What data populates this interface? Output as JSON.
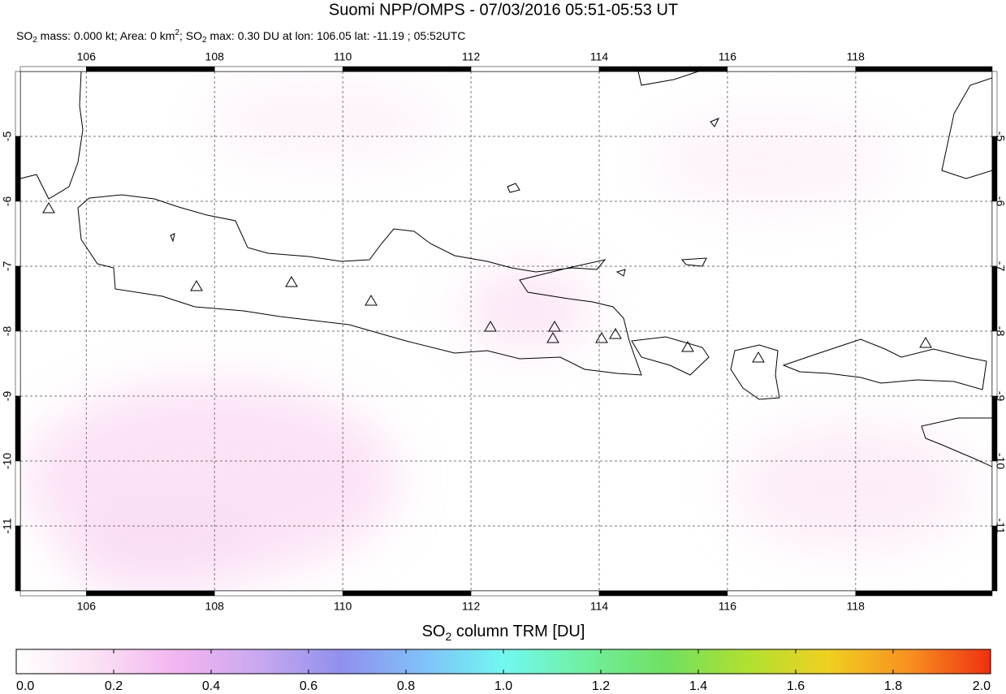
{
  "header": {
    "title": "Suomi NPP/OMPS - 07/03/2016 05:51-05:53 UT",
    "subtitle": [
      "SO",
      "2",
      " mass: 0.000 kt; Area: 0 km",
      "2",
      "; SO",
      "2",
      " max: 0.30 DU at lon: 106.05 lat: -11.19 ; 05:52UTC"
    ]
  },
  "map": {
    "lon_range": [
      104.97,
      120.13
    ],
    "lat_range": [
      -4.0,
      -12.0
    ],
    "lon_ticks": [
      106,
      108,
      110,
      112,
      114,
      116,
      118
    ],
    "lat_ticks": [
      -5,
      -6,
      -7,
      -8,
      -9,
      -10,
      -11
    ]
  },
  "colorbar": {
    "label": [
      "SO",
      "2",
      " column TRM [DU]"
    ],
    "range": [
      0,
      2
    ],
    "colors": [
      "#ffffff",
      "#fbe0f4",
      "#f2b4f0",
      "#c8a8f0",
      "#9090ee",
      "#80c0f8",
      "#70f8f0",
      "#70f0a0",
      "#70e060",
      "#b0e030",
      "#f0d020",
      "#f89020",
      "#f03010"
    ],
    "ticks": [
      {
        "value": 0,
        "label": "0.0"
      },
      {
        "value": 0.2,
        "label": "0.2"
      },
      {
        "value": 0.4,
        "label": "0.4"
      },
      {
        "value": 0.6,
        "label": "0.6"
      },
      {
        "value": 0.8,
        "label": "0.8"
      },
      {
        "value": 1.0,
        "label": "1.0"
      },
      {
        "value": 1.2,
        "label": "1.2"
      },
      {
        "value": 1.4,
        "label": "1.4"
      },
      {
        "value": 1.6,
        "label": "1.6"
      },
      {
        "value": 1.8,
        "label": "1.8"
      },
      {
        "value": 2.0,
        "label": "2.0"
      }
    ]
  }
}
